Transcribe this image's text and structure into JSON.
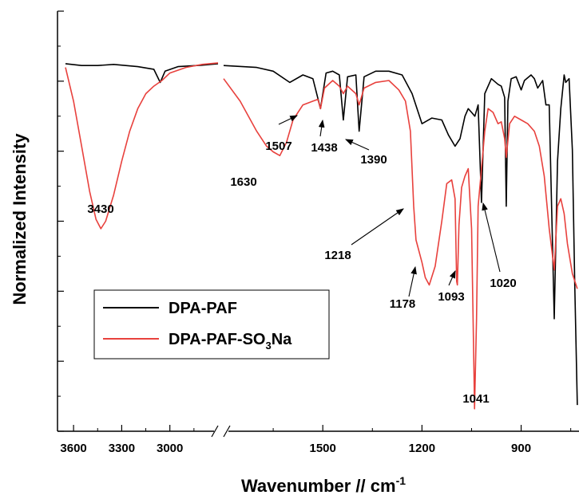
{
  "chart_data": {
    "type": "line",
    "xlabel_main": "Wavenumber // cm",
    "xlabel_sup": "-1",
    "ylabel": "Normalized Intensity",
    "x_reversed": true,
    "x_break": [
      2700,
      1800
    ],
    "xlim_left_segment": [
      3700,
      2700
    ],
    "xlim_right_segment": [
      1800,
      725
    ],
    "xticks": [
      3600,
      3300,
      3000,
      1500,
      1200,
      900
    ],
    "xtick_labels": [
      "3600",
      "3300",
      "3000",
      "1500",
      "1200",
      "900"
    ],
    "y_tick_labels_shown": false,
    "grid": false,
    "legend_position": "bottom-left",
    "series": [
      {
        "name": "DPA-PAF",
        "legend_main": "DPA-PAF",
        "color": "#000000",
        "points": [
          [
            3650,
            0.98
          ],
          [
            3550,
            0.975
          ],
          [
            3450,
            0.975
          ],
          [
            3350,
            0.978
          ],
          [
            3200,
            0.972
          ],
          [
            3100,
            0.965
          ],
          [
            3060,
            0.93
          ],
          [
            3030,
            0.96
          ],
          [
            2950,
            0.972
          ],
          [
            2800,
            0.976
          ],
          [
            2700,
            0.98
          ],
          [
            1800,
            0.975
          ],
          [
            1700,
            0.97
          ],
          [
            1650,
            0.96
          ],
          [
            1600,
            0.93
          ],
          [
            1560,
            0.95
          ],
          [
            1530,
            0.94
          ],
          [
            1507,
            0.86
          ],
          [
            1490,
            0.955
          ],
          [
            1470,
            0.96
          ],
          [
            1450,
            0.95
          ],
          [
            1438,
            0.83
          ],
          [
            1425,
            0.945
          ],
          [
            1400,
            0.95
          ],
          [
            1390,
            0.8
          ],
          [
            1375,
            0.945
          ],
          [
            1340,
            0.96
          ],
          [
            1300,
            0.96
          ],
          [
            1260,
            0.95
          ],
          [
            1230,
            0.9
          ],
          [
            1200,
            0.82
          ],
          [
            1170,
            0.835
          ],
          [
            1140,
            0.83
          ],
          [
            1120,
            0.79
          ],
          [
            1100,
            0.76
          ],
          [
            1085,
            0.78
          ],
          [
            1070,
            0.84
          ],
          [
            1060,
            0.86
          ],
          [
            1050,
            0.85
          ],
          [
            1040,
            0.84
          ],
          [
            1030,
            0.87
          ],
          [
            1020,
            0.61
          ],
          [
            1010,
            0.9
          ],
          [
            990,
            0.94
          ],
          [
            970,
            0.925
          ],
          [
            960,
            0.92
          ],
          [
            950,
            0.89
          ],
          [
            945,
            0.6
          ],
          [
            940,
            0.88
          ],
          [
            930,
            0.94
          ],
          [
            915,
            0.945
          ],
          [
            900,
            0.91
          ],
          [
            890,
            0.935
          ],
          [
            870,
            0.95
          ],
          [
            860,
            0.94
          ],
          [
            850,
            0.915
          ],
          [
            835,
            0.935
          ],
          [
            825,
            0.87
          ],
          [
            815,
            0.87
          ],
          [
            800,
            0.3
          ],
          [
            790,
            0.72
          ],
          [
            780,
            0.86
          ],
          [
            770,
            0.95
          ],
          [
            765,
            0.93
          ],
          [
            755,
            0.94
          ],
          [
            745,
            0.75
          ],
          [
            738,
            0.4
          ],
          [
            730,
            0.07
          ]
        ]
      },
      {
        "name": "DPA-PAF-SO3Na",
        "legend_main": "DPA-PAF-SO",
        "legend_sub": "3",
        "legend_suffix": "Na",
        "color": "#e8413d",
        "points": [
          [
            3650,
            0.97
          ],
          [
            3600,
            0.88
          ],
          [
            3550,
            0.76
          ],
          [
            3500,
            0.64
          ],
          [
            3460,
            0.565
          ],
          [
            3430,
            0.54
          ],
          [
            3400,
            0.56
          ],
          [
            3350,
            0.63
          ],
          [
            3300,
            0.72
          ],
          [
            3250,
            0.8
          ],
          [
            3200,
            0.86
          ],
          [
            3150,
            0.9
          ],
          [
            3100,
            0.92
          ],
          [
            3050,
            0.935
          ],
          [
            3000,
            0.955
          ],
          [
            2900,
            0.97
          ],
          [
            2800,
            0.978
          ],
          [
            2700,
            0.982
          ],
          [
            1800,
            0.94
          ],
          [
            1750,
            0.88
          ],
          [
            1700,
            0.8
          ],
          [
            1670,
            0.76
          ],
          [
            1650,
            0.745
          ],
          [
            1630,
            0.735
          ],
          [
            1610,
            0.77
          ],
          [
            1590,
            0.83
          ],
          [
            1560,
            0.87
          ],
          [
            1530,
            0.88
          ],
          [
            1515,
            0.885
          ],
          [
            1507,
            0.86
          ],
          [
            1495,
            0.915
          ],
          [
            1470,
            0.935
          ],
          [
            1450,
            0.92
          ],
          [
            1438,
            0.9
          ],
          [
            1425,
            0.92
          ],
          [
            1400,
            0.9
          ],
          [
            1390,
            0.87
          ],
          [
            1375,
            0.915
          ],
          [
            1340,
            0.93
          ],
          [
            1300,
            0.935
          ],
          [
            1270,
            0.91
          ],
          [
            1250,
            0.88
          ],
          [
            1235,
            0.8
          ],
          [
            1225,
            0.6
          ],
          [
            1218,
            0.51
          ],
          [
            1200,
            0.45
          ],
          [
            1190,
            0.41
          ],
          [
            1178,
            0.39
          ],
          [
            1160,
            0.44
          ],
          [
            1140,
            0.56
          ],
          [
            1125,
            0.66
          ],
          [
            1110,
            0.67
          ],
          [
            1100,
            0.62
          ],
          [
            1095,
            0.4
          ],
          [
            1093,
            0.39
          ],
          [
            1088,
            0.55
          ],
          [
            1080,
            0.65
          ],
          [
            1070,
            0.68
          ],
          [
            1060,
            0.7
          ],
          [
            1050,
            0.54
          ],
          [
            1043,
            0.17
          ],
          [
            1041,
            0.06
          ],
          [
            1035,
            0.3
          ],
          [
            1030,
            0.6
          ],
          [
            1020,
            0.7
          ],
          [
            1010,
            0.8
          ],
          [
            1000,
            0.86
          ],
          [
            985,
            0.85
          ],
          [
            970,
            0.82
          ],
          [
            960,
            0.825
          ],
          [
            950,
            0.78
          ],
          [
            945,
            0.73
          ],
          [
            935,
            0.82
          ],
          [
            920,
            0.84
          ],
          [
            900,
            0.83
          ],
          [
            880,
            0.82
          ],
          [
            860,
            0.8
          ],
          [
            845,
            0.76
          ],
          [
            830,
            0.68
          ],
          [
            815,
            0.54
          ],
          [
            800,
            0.43
          ],
          [
            790,
            0.6
          ],
          [
            780,
            0.62
          ],
          [
            770,
            0.58
          ],
          [
            760,
            0.5
          ],
          [
            745,
            0.42
          ],
          [
            730,
            0.38
          ]
        ]
      }
    ],
    "annotations": [
      {
        "label": "3430",
        "x": 3430,
        "y": 0.54,
        "arrow": false
      },
      {
        "label": "1630",
        "x": 1630,
        "y": 0.735,
        "arrow": false
      },
      {
        "label": "1507",
        "x": 1507,
        "y": 0.86,
        "arrow": true
      },
      {
        "label": "1438",
        "x": 1438,
        "y": 0.83,
        "arrow": true
      },
      {
        "label": "1390",
        "x": 1390,
        "y": 0.8,
        "arrow": true
      },
      {
        "label": "1218",
        "x": 1218,
        "y": 0.59,
        "arrow": true
      },
      {
        "label": "1178",
        "x": 1178,
        "y": 0.4,
        "arrow": true
      },
      {
        "label": "1093",
        "x": 1093,
        "y": 0.395,
        "arrow": true
      },
      {
        "label": "1020",
        "x": 1020,
        "y": 0.615,
        "arrow": true
      },
      {
        "label": "1041",
        "x": 1041,
        "y": 0.06,
        "arrow": false
      }
    ]
  }
}
